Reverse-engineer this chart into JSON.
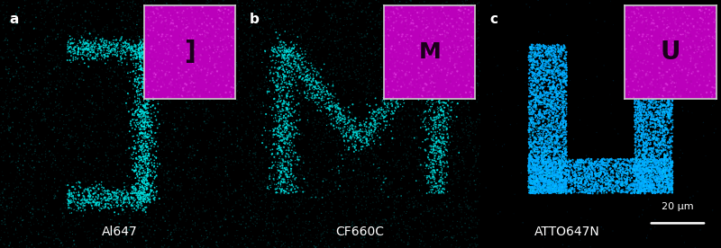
{
  "fig_width": 8.0,
  "fig_height": 2.76,
  "dpi": 100,
  "background": "#000000",
  "panels": [
    {
      "label": "a",
      "dye_label": "Al647",
      "inset_letter": "]",
      "inset_bg": "#bb00bb",
      "inset_letter_color": "#1a001a",
      "dot_color": "#00dddd",
      "dot_color2": "#00ffff",
      "bg_dot_color": "#003333"
    },
    {
      "label": "b",
      "dye_label": "CF660C",
      "inset_letter": "M",
      "inset_bg": "#bb00bb",
      "inset_letter_color": "#1a001a",
      "dot_color": "#00dddd",
      "dot_color2": "#00ffff",
      "bg_dot_color": "#003333"
    },
    {
      "label": "c",
      "dye_label": "ATTO647N",
      "inset_letter": "U",
      "inset_bg": "#bb00bb",
      "inset_letter_color": "#1a001a",
      "dot_color": "#00aaff",
      "dot_color2": "#00ccff",
      "bg_dot_color": "#001133"
    }
  ],
  "scalebar_text": "20 μm"
}
